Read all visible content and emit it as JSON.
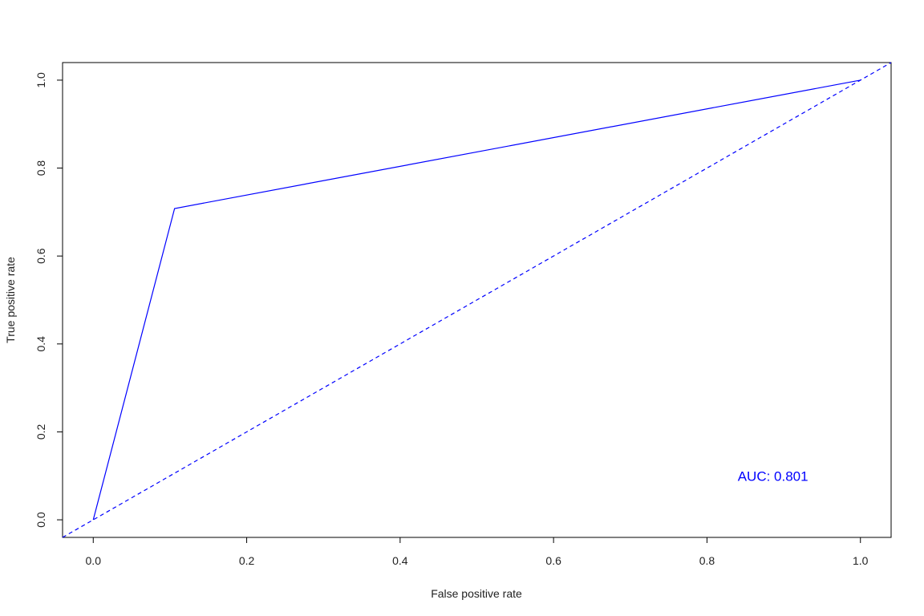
{
  "chart_data": {
    "type": "line",
    "title": "",
    "xlabel": "False positive rate",
    "ylabel": "True positive rate",
    "xlim": [
      -0.04,
      1.04
    ],
    "ylim": [
      -0.04,
      1.04
    ],
    "x_ticks": [
      "0.0",
      "0.2",
      "0.4",
      "0.6",
      "0.8",
      "1.0"
    ],
    "y_ticks": [
      "0.0",
      "0.2",
      "0.4",
      "0.6",
      "0.8",
      "1.0"
    ],
    "grid": false,
    "series": [
      {
        "line_style": "solid",
        "color": "#0000ff",
        "x": [
          0.0,
          0.106,
          1.0
        ],
        "y": [
          0.0,
          0.708,
          1.0
        ]
      },
      {
        "line_style": "dashed",
        "color": "#0000ff",
        "x": [
          -0.04,
          1.04
        ],
        "y": [
          -0.04,
          1.04
        ]
      }
    ],
    "annotations": [
      {
        "text": "AUC: 0.801",
        "x": 0.84,
        "y": 0.1,
        "color": "#0000ff"
      }
    ]
  }
}
